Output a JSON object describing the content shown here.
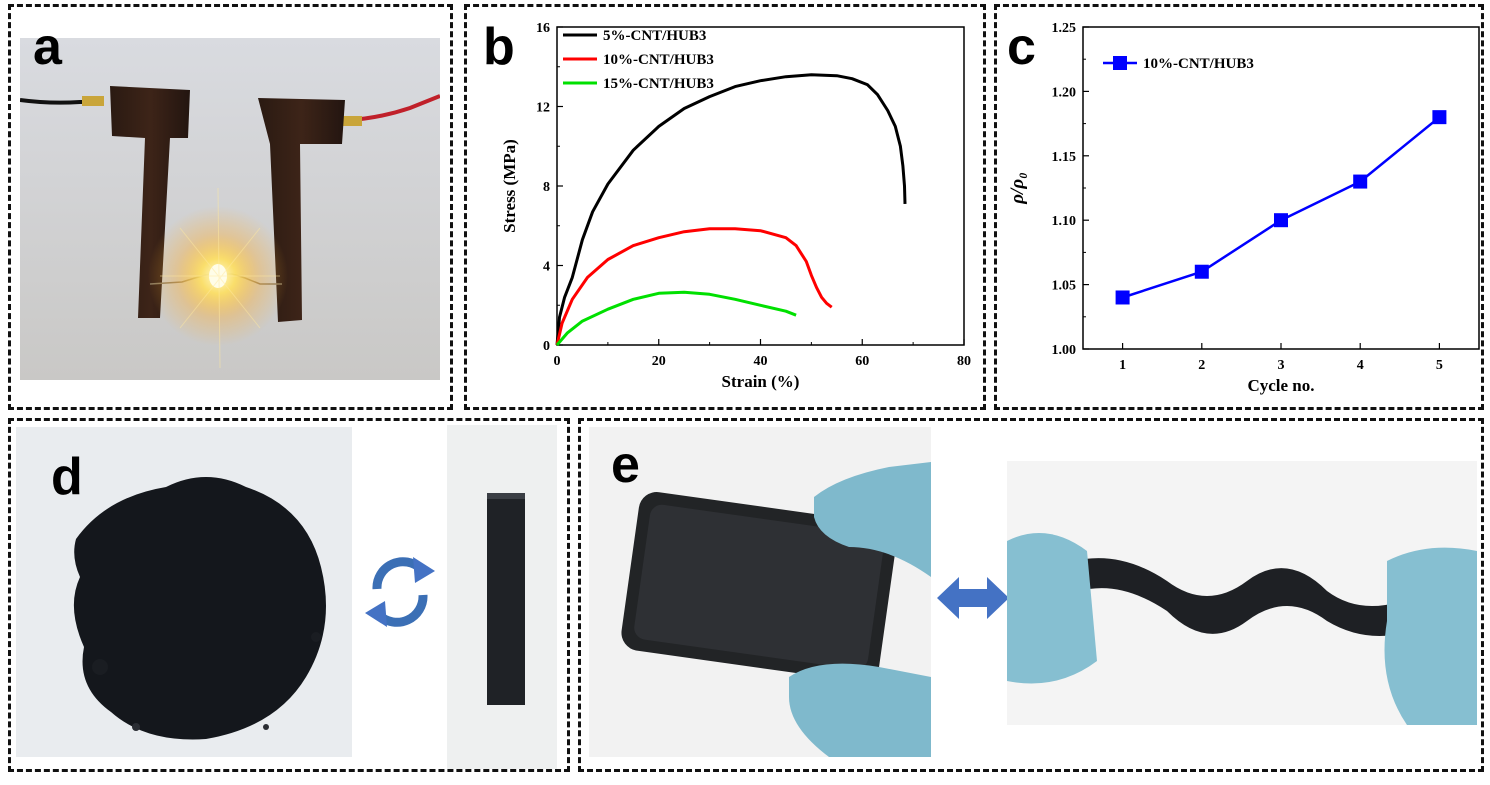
{
  "panels": {
    "a": {
      "label": "a"
    },
    "b": {
      "label": "b"
    },
    "c": {
      "label": "c"
    },
    "d": {
      "label": "d"
    },
    "e": {
      "label": "e"
    }
  },
  "chart_data": [
    {
      "panel": "b",
      "type": "line",
      "title": "",
      "xlabel": "Strain (%)",
      "ylabel": "Stress (MPa)",
      "xlim": [
        0,
        80
      ],
      "ylim": [
        0,
        16
      ],
      "xticks": [
        "0",
        "20",
        "40",
        "60",
        "80"
      ],
      "yticks": [
        "0",
        "4",
        "8",
        "12",
        "16"
      ],
      "legend_position": "top-left",
      "series": [
        {
          "name": "5%-CNT/HUB3",
          "color": "#000000",
          "x": [
            0,
            0.5,
            1.5,
            3,
            5,
            7,
            10,
            15,
            20,
            25,
            30,
            35,
            40,
            45,
            50,
            55,
            58,
            61,
            63,
            65,
            66.5,
            67.5,
            68,
            68.3,
            68.4
          ],
          "y": [
            0,
            1.4,
            2.4,
            3.4,
            5.3,
            6.7,
            8.1,
            9.8,
            11.0,
            11.9,
            12.5,
            13.0,
            13.3,
            13.5,
            13.6,
            13.55,
            13.4,
            13.1,
            12.6,
            11.8,
            11.0,
            10.0,
            9.0,
            8.0,
            7.1
          ]
        },
        {
          "name": "10%-CNT/HUB3",
          "color": "#ff0000",
          "x": [
            0,
            1,
            3,
            6,
            10,
            15,
            20,
            25,
            30,
            35,
            40,
            45,
            47,
            49,
            50,
            51,
            52,
            53,
            54
          ],
          "y": [
            0,
            1.1,
            2.3,
            3.4,
            4.3,
            5.0,
            5.4,
            5.7,
            5.85,
            5.85,
            5.75,
            5.4,
            5.0,
            4.2,
            3.5,
            2.9,
            2.4,
            2.1,
            1.9
          ]
        },
        {
          "name": "15%-CNT/HUB3",
          "color": "#00e000",
          "x": [
            0,
            2,
            5,
            10,
            15,
            20,
            25,
            30,
            35,
            40,
            45,
            47
          ],
          "y": [
            0,
            0.6,
            1.2,
            1.8,
            2.3,
            2.6,
            2.65,
            2.55,
            2.3,
            2.0,
            1.7,
            1.5
          ]
        }
      ]
    },
    {
      "panel": "c",
      "type": "line",
      "title": "",
      "xlabel": "Cycle no.",
      "ylabel": "ρ/ρ₀",
      "xlim": [
        0.5,
        5.5
      ],
      "ylim": [
        1.0,
        1.25
      ],
      "xticks": [
        "1",
        "2",
        "3",
        "4",
        "5"
      ],
      "yticks": [
        "1.00",
        "1.05",
        "1.10",
        "1.15",
        "1.20",
        "1.25"
      ],
      "legend_position": "top-left",
      "series": [
        {
          "name": "10%-CNT/HUB3",
          "color": "#0000ff",
          "marker": "square",
          "x": [
            1,
            2,
            3,
            4,
            5
          ],
          "y": [
            1.04,
            1.06,
            1.1,
            1.13,
            1.18
          ]
        }
      ]
    }
  ]
}
